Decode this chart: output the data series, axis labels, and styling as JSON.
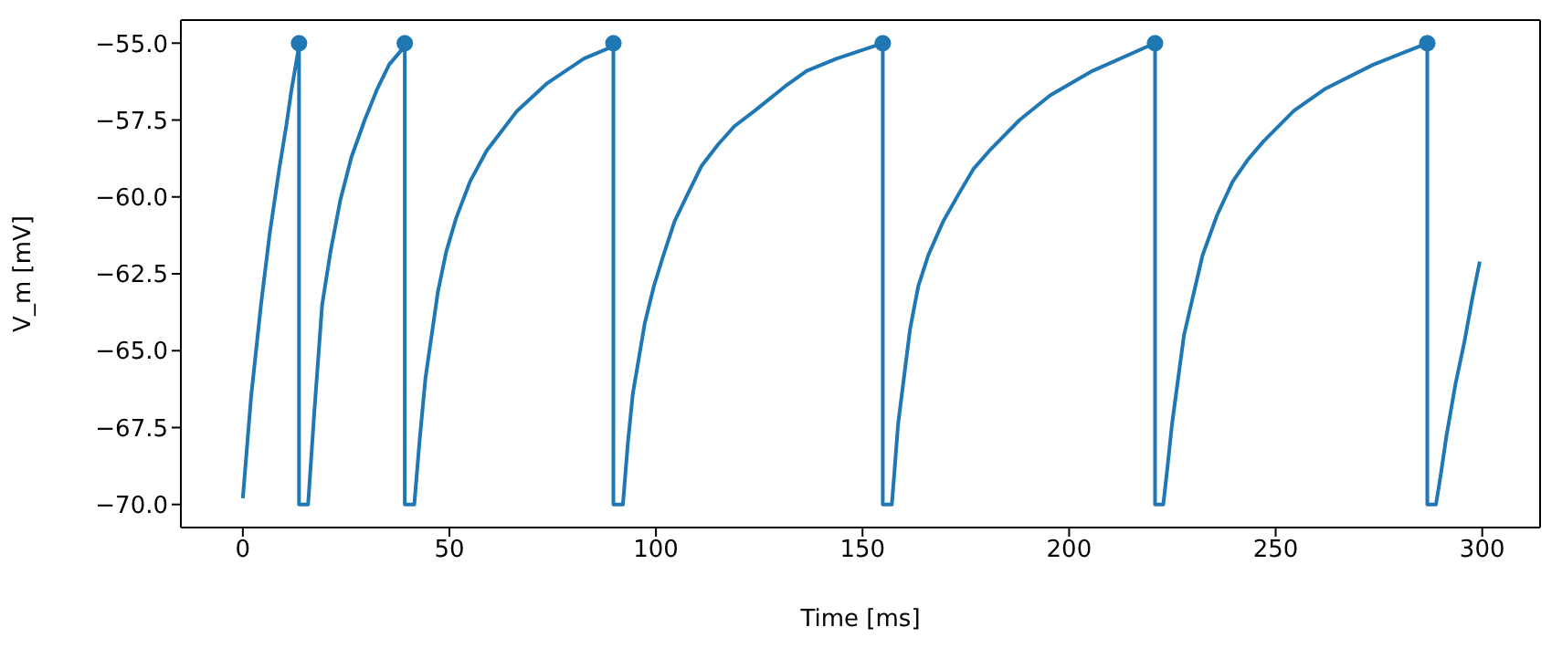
{
  "chart_data": {
    "type": "line",
    "xlabel": "Time [ms]",
    "ylabel": "V_m [mV]",
    "xlim": [
      -15,
      314
    ],
    "ylim": [
      -70.75,
      -54.25
    ],
    "xticks": [
      0,
      50,
      100,
      150,
      200,
      250,
      300
    ],
    "yticks": [
      {
        "value": -70,
        "label": "−70.0"
      },
      {
        "value": -67.5,
        "label": "−67.5"
      },
      {
        "value": -65,
        "label": "−65.0"
      },
      {
        "value": -62.5,
        "label": "−62.5"
      },
      {
        "value": -60,
        "label": "−60.0"
      },
      {
        "value": -57.5,
        "label": "−57.5"
      },
      {
        "value": -55,
        "label": "−55.0"
      }
    ],
    "grid": false,
    "series": [
      {
        "type": "line",
        "color": "#1f77b4",
        "marker": "none",
        "line_style": "solid",
        "x": [
          0,
          2,
          4.4,
          6.5,
          8.8,
          10.5,
          11.8,
          13.6,
          13.6,
          15.8,
          17.3,
          19.2,
          21.2,
          23.6,
          26.3,
          29.5,
          32.5,
          35.4,
          39.2,
          39.2,
          41.5,
          42.8,
          44.2,
          47.2,
          49.2,
          51.6,
          55,
          59,
          66.4,
          73.7,
          82.6,
          89.7,
          89.7,
          92,
          93.2,
          94.4,
          97.3,
          99.5,
          101.8,
          104.5,
          107.7,
          111,
          115,
          119,
          123.9,
          131.3,
          136.5,
          143.8,
          154.9,
          154.9,
          157.1,
          157.8,
          158.6,
          161.5,
          163.5,
          165.9,
          169.5,
          173.3,
          176.8,
          180.7,
          188,
          195.4,
          205.7,
          220.8,
          220.8,
          222.8,
          223.8,
          224.9,
          227.8,
          232.3,
          235.8,
          239.6,
          243.2,
          247,
          254.4,
          261.8,
          273.6,
          286.7,
          286.7,
          288.8,
          290,
          291.3,
          293.5,
          295.7,
          297.6,
          299.4
        ],
        "values": [
          -69.8,
          -66.5,
          -63.5,
          -61.2,
          -59.1,
          -57.7,
          -56.5,
          -55.1,
          -70,
          -70,
          -67,
          -63.5,
          -61.8,
          -60.1,
          -58.7,
          -57.5,
          -56.5,
          -55.7,
          -55.1,
          -70,
          -70,
          -67.9,
          -65.9,
          -63.1,
          -61.8,
          -60.7,
          -59.5,
          -58.5,
          -57.2,
          -56.3,
          -55.5,
          -55.1,
          -70,
          -70,
          -68,
          -66.4,
          -64.1,
          -62.9,
          -61.9,
          -60.8,
          -59.9,
          -59,
          -58.3,
          -57.7,
          -57.2,
          -56.4,
          -55.9,
          -55.5,
          -55,
          -70,
          -70,
          -68.8,
          -67.4,
          -64.3,
          -62.9,
          -61.9,
          -60.8,
          -59.9,
          -59.1,
          -58.5,
          -57.5,
          -56.7,
          -55.9,
          -55,
          -70,
          -70,
          -68.8,
          -67.4,
          -64.5,
          -61.9,
          -60.6,
          -59.5,
          -58.8,
          -58.2,
          -57.2,
          -56.5,
          -55.7,
          -55,
          -70,
          -70,
          -69,
          -67.8,
          -66.1,
          -64.7,
          -63.3,
          -62.1
        ]
      },
      {
        "type": "scatter",
        "color": "#1f77b4",
        "marker": "circle",
        "x": [
          13.6,
          39.2,
          89.7,
          154.9,
          220.8,
          286.7
        ],
        "values": [
          -55,
          -55,
          -55,
          -55,
          -55,
          -55
        ]
      }
    ]
  }
}
